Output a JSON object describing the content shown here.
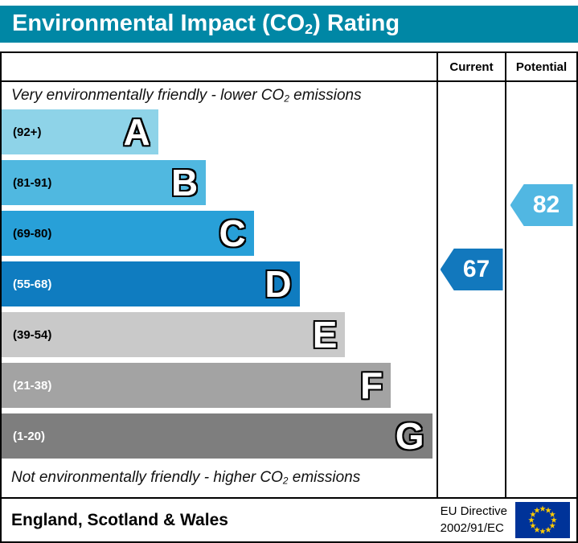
{
  "title": {
    "pre": "Environmental Impact (CO",
    "sub": "2",
    "post": ") Rating"
  },
  "columns": {
    "current": "Current",
    "potential": "Potential"
  },
  "notes": {
    "top": {
      "pre": "Very environmentally friendly - lower CO",
      "sub": "2",
      "post": " emissions"
    },
    "bottom": {
      "pre": "Not environmentally friendly - higher CO",
      "sub": "2",
      "post": " emissions"
    }
  },
  "footer": {
    "region": "England, Scotland & Wales",
    "directive_line1": "EU Directive",
    "directive_line2": "2002/91/EC"
  },
  "colors": {
    "header_bg": "#0087a5",
    "border": "#000000",
    "eu_flag_blue": "#003399",
    "eu_flag_star": "#ffcc00"
  },
  "chart_data": {
    "type": "bar",
    "title": "Environmental Impact (CO2) Rating",
    "xlabel": "",
    "ylabel": "",
    "legend_position": "top-right-columns",
    "bands": [
      {
        "letter": "A",
        "range": "(92+)",
        "min": 92,
        "max": 100,
        "color": "#8ed3e8",
        "range_color": "#000000",
        "width_pct": 36
      },
      {
        "letter": "B",
        "range": "(81-91)",
        "min": 81,
        "max": 91,
        "color": "#50b8e0",
        "range_color": "#000000",
        "width_pct": 47
      },
      {
        "letter": "C",
        "range": "(69-80)",
        "min": 69,
        "max": 80,
        "color": "#28a0d8",
        "range_color": "#000000",
        "width_pct": 58
      },
      {
        "letter": "D",
        "range": "(55-68)",
        "min": 55,
        "max": 68,
        "color": "#0f7cc0",
        "range_color": "#ffffff",
        "width_pct": 68.5
      },
      {
        "letter": "E",
        "range": "(39-54)",
        "min": 39,
        "max": 54,
        "color": "#c9c9c9",
        "range_color": "#000000",
        "width_pct": 79
      },
      {
        "letter": "F",
        "range": "(21-38)",
        "min": 21,
        "max": 38,
        "color": "#a3a3a3",
        "range_color": "#ffffff",
        "width_pct": 89.5
      },
      {
        "letter": "G",
        "range": "(1-20)",
        "min": 1,
        "max": 20,
        "color": "#7e7e7e",
        "range_color": "#ffffff",
        "width_pct": 99
      }
    ],
    "markers": [
      {
        "name": "current",
        "label": "Current",
        "value": 67,
        "band": "D",
        "color": "#1278bd"
      },
      {
        "name": "potential",
        "label": "Potential",
        "value": 82,
        "band": "B",
        "color": "#51b7e2"
      }
    ]
  }
}
